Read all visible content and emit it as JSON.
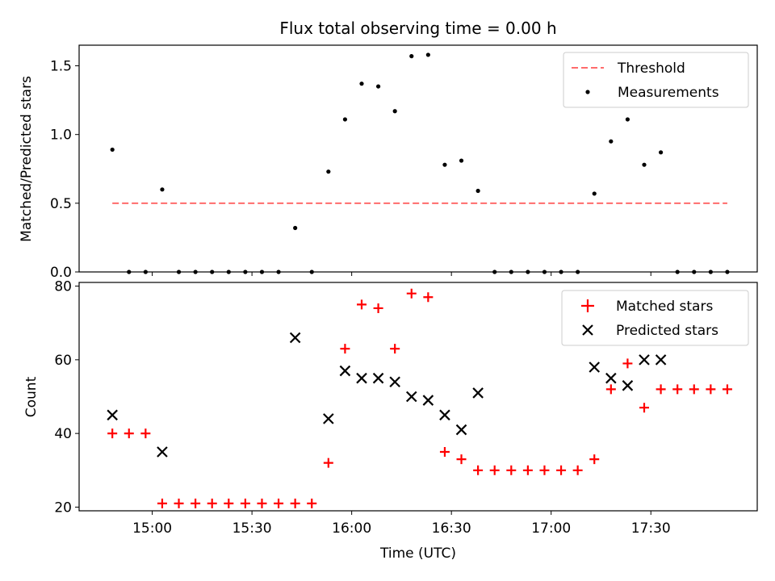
{
  "chart_data": [
    {
      "type": "scatter",
      "title": "Flux total observing time = 0.00 h",
      "xlabel": "",
      "ylabel": "Matched/Predicted stars",
      "xlim": [
        "14:38",
        "18:02"
      ],
      "ylim": [
        0,
        1.65
      ],
      "yticks": [
        {
          "value": 0.0,
          "label": "0.0"
        },
        {
          "value": 0.5,
          "label": "0.5"
        },
        {
          "value": 1.0,
          "label": "1.0"
        },
        {
          "value": 1.5,
          "label": "1.5"
        }
      ],
      "xticks": [
        "15:00",
        "15:30",
        "16:00",
        "16:30",
        "17:00",
        "17:30"
      ],
      "show_x_tick_labels": false,
      "grid": false,
      "legend_position": "top-right",
      "threshold": {
        "name": "Threshold",
        "value": 0.5,
        "x_start": "14:48",
        "x_end": "17:53",
        "color": "#ff6b6b",
        "style": "dashed"
      },
      "series": [
        {
          "name": "Measurements",
          "marker": "dot",
          "color": "#000000",
          "x": [
            "14:48",
            "14:53",
            "14:58",
            "15:03",
            "15:08",
            "15:13",
            "15:18",
            "15:23",
            "15:28",
            "15:33",
            "15:38",
            "15:43",
            "15:48",
            "15:53",
            "15:58",
            "16:03",
            "16:08",
            "16:13",
            "16:18",
            "16:23",
            "16:28",
            "16:33",
            "16:38",
            "16:43",
            "16:48",
            "16:53",
            "16:58",
            "17:03",
            "17:08",
            "17:13",
            "17:18",
            "17:23",
            "17:28",
            "17:33",
            "17:38",
            "17:43",
            "17:48",
            "17:53"
          ],
          "y": [
            0.89,
            0,
            0,
            0.6,
            0,
            0,
            0,
            0,
            0,
            0,
            0,
            0.32,
            0,
            0.73,
            1.11,
            1.37,
            1.35,
            1.17,
            1.57,
            1.58,
            0.78,
            0.81,
            0.59,
            0,
            0,
            0,
            0,
            0,
            0,
            0.57,
            0.95,
            1.11,
            0.78,
            0.87,
            0,
            0,
            0,
            0
          ]
        }
      ]
    },
    {
      "type": "scatter",
      "title": "",
      "xlabel": "Time (UTC)",
      "ylabel": "Count",
      "xlim": [
        "14:38",
        "18:02"
      ],
      "ylim": [
        19,
        81
      ],
      "yticks": [
        {
          "value": 20,
          "label": "20"
        },
        {
          "value": 40,
          "label": "40"
        },
        {
          "value": 60,
          "label": "60"
        },
        {
          "value": 80,
          "label": "80"
        }
      ],
      "xticks": [
        "15:00",
        "15:30",
        "16:00",
        "16:30",
        "17:00",
        "17:30"
      ],
      "show_x_tick_labels": true,
      "grid": false,
      "legend_position": "top-right",
      "series": [
        {
          "name": "Matched stars",
          "marker": "plus",
          "color": "#ff0000",
          "x": [
            "14:48",
            "14:53",
            "14:58",
            "15:03",
            "15:08",
            "15:13",
            "15:18",
            "15:23",
            "15:28",
            "15:33",
            "15:38",
            "15:43",
            "15:48",
            "15:53",
            "15:58",
            "16:03",
            "16:08",
            "16:13",
            "16:18",
            "16:23",
            "16:28",
            "16:33",
            "16:38",
            "16:43",
            "16:48",
            "16:53",
            "16:58",
            "17:03",
            "17:08",
            "17:13",
            "17:18",
            "17:23",
            "17:28",
            "17:33",
            "17:38",
            "17:43",
            "17:48",
            "17:53"
          ],
          "y": [
            40,
            40,
            40,
            21,
            21,
            21,
            21,
            21,
            21,
            21,
            21,
            21,
            21,
            32,
            63,
            75,
            74,
            63,
            78,
            77,
            35,
            33,
            30,
            30,
            30,
            30,
            30,
            30,
            30,
            33,
            52,
            59,
            47,
            52,
            52,
            52,
            52,
            52
          ]
        },
        {
          "name": "Predicted stars",
          "marker": "x",
          "color": "#000000",
          "x": [
            "14:48",
            "15:03",
            "15:43",
            "15:53",
            "15:58",
            "16:03",
            "16:08",
            "16:13",
            "16:18",
            "16:23",
            "16:28",
            "16:33",
            "16:38",
            "17:13",
            "17:18",
            "17:23",
            "17:28",
            "17:33"
          ],
          "y": [
            45,
            35,
            66,
            44,
            57,
            55,
            55,
            54,
            50,
            49,
            45,
            41,
            51,
            58,
            55,
            53,
            60,
            60
          ]
        }
      ]
    }
  ]
}
